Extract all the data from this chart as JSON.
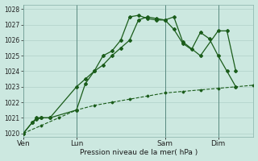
{
  "background_color": "#cce8e0",
  "grid_color": "#b0d0c8",
  "line_color": "#1a5c1a",
  "title": "Pression niveau de la mer( hPa )",
  "ylabel_values": [
    1020,
    1021,
    1022,
    1023,
    1024,
    1025,
    1026,
    1027,
    1028
  ],
  "ylim": [
    1019.8,
    1028.3
  ],
  "x_ticks_labels": [
    "Ven",
    "Lun",
    "Sam",
    "Dim"
  ],
  "x_ticks_pos": [
    0,
    36,
    96,
    132
  ],
  "xlim": [
    0,
    156
  ],
  "series1_x": [
    0,
    6,
    9,
    12,
    18,
    36,
    42,
    48,
    54,
    60,
    66,
    72,
    78,
    84,
    90,
    96,
    102,
    108,
    114,
    120,
    126,
    132,
    138,
    144
  ],
  "series1_y": [
    1020.0,
    1020.7,
    1021.0,
    1021.0,
    1021.0,
    1023.0,
    1023.5,
    1024.0,
    1025.0,
    1025.3,
    1026.0,
    1027.5,
    1027.6,
    1027.4,
    1027.3,
    1027.3,
    1026.7,
    1025.8,
    1025.4,
    1026.5,
    1026.1,
    1025.0,
    1024.0,
    1023.0
  ],
  "series2_x": [
    0,
    6,
    9,
    12,
    18,
    36,
    42,
    48,
    54,
    60,
    66,
    72,
    78,
    84,
    90,
    96,
    102,
    108,
    120,
    132,
    138,
    144
  ],
  "series2_y": [
    1020.0,
    1020.7,
    1020.9,
    1021.0,
    1021.0,
    1021.5,
    1023.2,
    1024.0,
    1024.4,
    1025.0,
    1025.5,
    1026.0,
    1027.3,
    1027.5,
    1027.4,
    1027.3,
    1027.5,
    1025.9,
    1025.0,
    1026.6,
    1026.6,
    1024.0
  ],
  "series3_x": [
    0,
    12,
    24,
    36,
    48,
    60,
    72,
    84,
    96,
    108,
    120,
    132,
    144,
    156
  ],
  "series3_y": [
    1020.0,
    1020.5,
    1021.0,
    1021.5,
    1021.8,
    1022.0,
    1022.2,
    1022.4,
    1022.6,
    1022.7,
    1022.8,
    1022.9,
    1023.0,
    1023.1
  ]
}
